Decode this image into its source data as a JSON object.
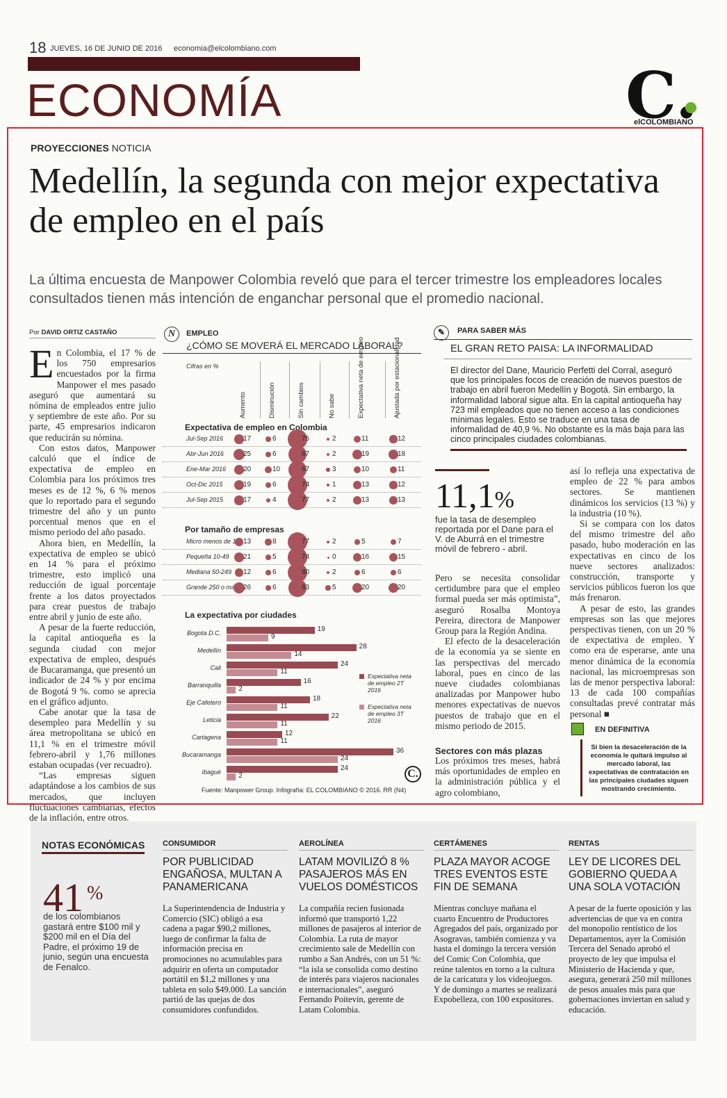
{
  "header": {
    "page_number": "18",
    "date": "JUEVES, 16 DE JUNIO DE 2016",
    "email": "economia@elcolombiano.com",
    "section": "ECONOMÍA",
    "logo_letter": "C.",
    "logo_name": "elCOLOMBIANO"
  },
  "article": {
    "kicker_bold": "PROYECCIONES",
    "kicker_light": "NOTICIA",
    "headline": "Medellín, la segunda con mejor expectativa de empleo en el país",
    "deck": "La última encuesta de Manpower Colombia reveló que para el tercer trimestre los empleadores locales consultados tienen más intención de enganchar personal que el promedio nacional.",
    "byline_prefix": "Por",
    "byline_name": "DAVID ORTIZ CASTAÑO",
    "col1_dropcap": "E",
    "col1_paragraphs": [
      "n Colombia, el 17 % de los 750 empresarios encuestados por la firma Manpower el mes pasado aseguró que aumentará su nómina de empleados entre julio y septiembre de este año. Por su parte, 45 empresarios indicaron que reducirán su nómina.",
      "Con estos datos, Manpower calculó que el índice de expectativa de empleo en Colombia para los próximos tres meses es de 12 %, 6 % menos que lo reportado para el segundo trimestre del año y un punto porcentual menos que en el mismo periodo del año pasado.",
      "Ahora bien, en Medellín, la expectativa de empleo se ubicó en 14 % para el próximo trimestre, esto implicó una reducción de igual porcentaje frente a los datos proyectados para crear puestos de trabajo entre abril y junio de este año.",
      "A pesar de la fuerte reducción, la capital antioqueña es la segunda ciudad con mejor expectativa de empleo, después de Bucaramanga, que presentó un indicador de 24 % y por encima de Bogotá 9 %. como se aprecia en el gráfico adjunto.",
      "Cabe anotar que la tasa de desempleo para Medellín y su área metropolitana se ubicó en 11,1 % en el trimestre móvil febrero-abril y 1,76 millones estaban ocupadas (ver recuadro).",
      "“Las empresas siguen adaptándose a los cambios de sus mercados, que incluyen fluctuaciones cambiarias, efectos de la inflación, entre otros."
    ],
    "col3_paragraphs": [
      "Pero se necesita consolidar certidumbre para que el empleo formal pueda ser más optimista”, aseguró Rosalba Montoya Pereira, directora de Manpower Group para la Región Andina.",
      "El efecto de la desaceleración de la economía ya se siente en las perspectivas del mercado laboral, pues en cinco de las nueve ciudades colombianas analizadas por Manpower hubo menores expectativas de nuevos puestos de trabajo que en el mismo periodo de 2015."
    ],
    "sectores_heading": "Sectores con más plazas",
    "sectores_text": "Los próximos tres meses, habrá más oportunidades de empleo en la administración pública y el agro colombiano,",
    "col4_paragraphs": [
      "así lo refleja una expectativa de empleo de 22 % para ambos sectores. Se mantienen dinámicos los servicios (13 %) y la industria (10 %).",
      "Si se compara con los datos del mismo trimestre del año pasado, hubo moderación en las expectativas en cinco de los nueve sectores analizados: construcción, transporte y servicios públicos fueron los que más frenaron.",
      "A pesar de esto, las grandes empresas son las que mejores perspectivas tienen, con un 20 % de expectativa de empleo. Y como era de esperarse, ante una menor dinámica de la economía nacional, las microempresas son las de menor perspectiva laboral: 13 de cada 100 compañías consultadas prevé contratar más personal ■"
    ]
  },
  "saber_mas": {
    "label": "PARA SABER MÁS",
    "title": "EL GRAN RETO PAISA: LA INFORMALIDAD",
    "text": "El director del Dane, Mauricio Perfetti del Corral, aseguró que los principales focos de creación de nuevos puestos de trabajo en abril fueron Medellín y Bogotá. Sin embargo, la informalidad laboral sigue alta. En la capital antioqueña hay 723 mil empleados que no tienen acceso a las condiciones mínimas legales. Esto se traduce en una tasa de informalidad de 40,9 %. No obstante es la más baja para las cinco principales ciudades colombianas."
  },
  "stat": {
    "value": "11,1",
    "unit": "%",
    "text": "fue la tasa de desempleo reportada por el Dane para el V. de Aburrá en el trimestre móvil de febrero - abril."
  },
  "en_definitiva": {
    "label": "EN DEFINITIVA",
    "text": "Si bien la desaceleración de la economía le quitará impulso al mercado laboral, las expectativas de contratación en las principales ciudades siguen mostrando crecimiento."
  },
  "graphic": {
    "icon": "N",
    "label": "EMPLEO",
    "title": "¿CÓMO SE MOVERÁ EL MERCADO LABORAL?",
    "units_note": "Cifras en %",
    "source": "Fuente: Manpower Group. Infografía: EL COLOMBIANO © 2016. RR (N4)",
    "logo": "C.",
    "accent_color": "#a9545c"
  },
  "chart_data": [
    {
      "type": "table",
      "title": "Expectativa de empleo en Colombia",
      "columns": [
        "Aumento",
        "Disminución",
        "Sin cambios",
        "No sabe",
        "Expectativa neta de empleo",
        "Ajustada por estacionalidad"
      ],
      "rows": [
        {
          "label": "Jul-Sep 2016",
          "values": [
            17,
            6,
            75,
            2,
            11,
            12
          ]
        },
        {
          "label": "Abr-Jun 2016",
          "values": [
            25,
            6,
            67,
            2,
            19,
            18
          ]
        },
        {
          "label": "Ene-Mar 2016",
          "values": [
            20,
            10,
            67,
            3,
            10,
            11
          ]
        },
        {
          "label": "Oct-Dic 2015",
          "values": [
            19,
            6,
            74,
            1,
            13,
            12
          ]
        },
        {
          "label": "Jul-Sep 2015",
          "values": [
            17,
            4,
            77,
            2,
            13,
            13
          ]
        }
      ]
    },
    {
      "type": "table",
      "title": "Por tamaño de empresas",
      "columns": [
        "Aumento",
        "Disminución",
        "Sin cambios",
        "No sabe",
        "Expectativa neta de empleo",
        "Ajustada por estacionalidad"
      ],
      "rows": [
        {
          "label": "Micro menos de 10",
          "values": [
            13,
            8,
            77,
            2,
            5,
            7
          ]
        },
        {
          "label": "Pequeña 10-49",
          "values": [
            21,
            5,
            74,
            0,
            16,
            15
          ]
        },
        {
          "label": "Mediana 50-249",
          "values": [
            12,
            6,
            80,
            2,
            6,
            6
          ]
        },
        {
          "label": "Grande 250 o más",
          "values": [
            26,
            6,
            63,
            5,
            20,
            20
          ]
        }
      ]
    },
    {
      "type": "bar",
      "title": "La expectativa por ciudades",
      "categories": [
        "Bogota D.C.",
        "Medellín",
        "Cali",
        "Barranquilla",
        "Eje Cafetero",
        "Leticia",
        "Cartagena",
        "Bucaramanga",
        "Ibagué"
      ],
      "series": [
        {
          "name": "Expectativa neta de empleo 2T 2016",
          "values": [
            19,
            28,
            24,
            16,
            18,
            22,
            12,
            36,
            24
          ]
        },
        {
          "name": "Expectativa neta de empleo 3T 2016",
          "values": [
            9,
            14,
            11,
            2,
            11,
            11,
            11,
            24,
            2
          ]
        }
      ],
      "xlim": [
        0,
        36
      ]
    }
  ],
  "notas": {
    "title": "NOTAS ECONÓMICAS",
    "big_number": "41",
    "big_unit": "%",
    "big_text": "de los colombianos gastará entre $100 mil y $200 mil en el Día del Padre, el próximo 19 de junio, según una encuesta de Fenalco.",
    "columns": [
      {
        "category": "CONSUMIDOR",
        "headline": "POR PUBLICIDAD ENGAÑOSA, MULTAN A PANAMERICANA",
        "text": "La Superintendencia de Industria y Comercio (SIC) obligó a esa cadena a pagar $90,2 millones, luego de confirmar la falta de información precisa en promociones no acumulables para adquirir en oferta un computador portátil en $1,2 millones y una tableta en solo $49.000. La sanción partió de las quejas de dos consumidores confundidos."
      },
      {
        "category": "AEROLÍNEA",
        "headline": "LATAM MOVILIZÓ 8 % PASAJEROS MÁS EN VUELOS DOMÉSTICOS",
        "text": "La compañía recien fusionada informó que transportó 1,22 millones de pasajeros al interior de Colombia. La ruta de mayor crecimiento sale de Medellín con rumbo a San Andrés, con un 51 %: “la isla se consolida como destino de interés para viajeros nacionales e internacionales”, aseguró Fernando Poitevin, gerente de Latam Colombia."
      },
      {
        "category": "CERTÁMENES",
        "headline": "PLAZA MAYOR ACOGE TRES EVENTOS ESTE FIN DE SEMANA",
        "text": "Mientras concluye mañana el cuarto Encuentro de Productores Agregados del país, organizado por Asogravas, también comienza y va hasta el domingo la tercera versión del Comic Con Colombia, que reúne talentos en torno a la cultura de la caricatura y los videojuegos. Y de domingo a martes se realizará Expobelleza, con 100 expositores."
      },
      {
        "category": "RENTAS",
        "headline": "LEY DE LICORES DEL GOBIERNO QUEDA A UNA SOLA VOTACIÓN",
        "text": "A pesar de la fuerte oposición y las advertencias de que va en contra del monopolio rentístico de los Departamentos, ayer la Comisión Tercera del Senado aprobó el proyecto de ley que impulsa el Ministerio de Hacienda y que, asegura, generará 250 mil millones de pesos anuales más para que gobernaciones inviertan en salud y educación."
      }
    ]
  }
}
